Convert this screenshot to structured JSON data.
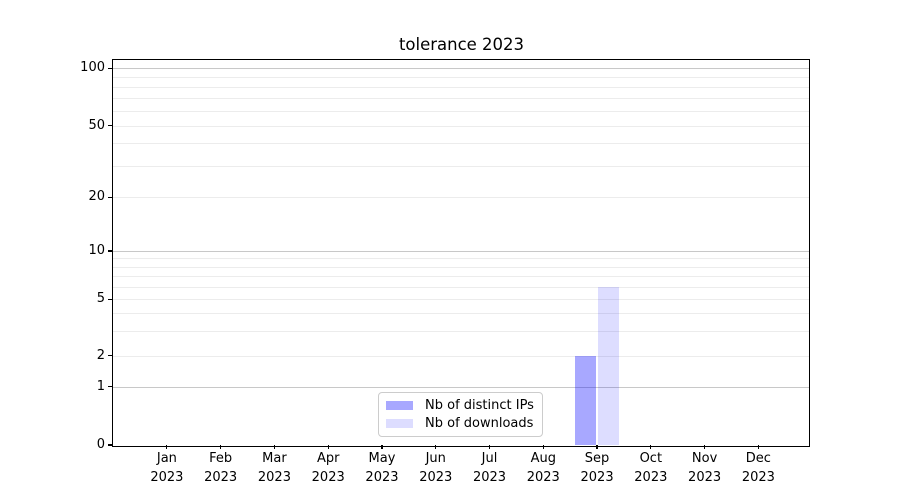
{
  "chart_data": {
    "type": "bar",
    "title": "tolerance 2023",
    "categories": [
      {
        "month": "Jan",
        "year": "2023"
      },
      {
        "month": "Feb",
        "year": "2023"
      },
      {
        "month": "Mar",
        "year": "2023"
      },
      {
        "month": "Apr",
        "year": "2023"
      },
      {
        "month": "May",
        "year": "2023"
      },
      {
        "month": "Jun",
        "year": "2023"
      },
      {
        "month": "Jul",
        "year": "2023"
      },
      {
        "month": "Aug",
        "year": "2023"
      },
      {
        "month": "Sep",
        "year": "2023"
      },
      {
        "month": "Oct",
        "year": "2023"
      },
      {
        "month": "Nov",
        "year": "2023"
      },
      {
        "month": "Dec",
        "year": "2023"
      }
    ],
    "series": [
      {
        "name": "Nb of distinct IPs",
        "color": "rgba(0,0,255,0.34)",
        "values": [
          0,
          0,
          0,
          0,
          0,
          0,
          0,
          0,
          2,
          0,
          0,
          0
        ]
      },
      {
        "name": "Nb of downloads",
        "color": "rgba(0,0,255,0.135)",
        "values": [
          0,
          0,
          0,
          0,
          0,
          0,
          0,
          0,
          6,
          0,
          0,
          0
        ]
      }
    ],
    "yaxis": {
      "scale": "symlog",
      "labeled_ticks": [
        0,
        1,
        2,
        5,
        10,
        20,
        50,
        100
      ],
      "major_gridlines": [
        1,
        10,
        100
      ],
      "minor_gridlines": [
        2,
        3,
        4,
        5,
        6,
        7,
        8,
        9,
        20,
        30,
        40,
        50,
        60,
        70,
        80,
        90
      ],
      "ylim": [
        0,
        112
      ]
    },
    "legend_location": "lower center",
    "grid": true,
    "colors": {
      "major_grid": "#c8c8c8",
      "minor_grid": "#ececec",
      "spine": "#000000",
      "text": "#000000"
    }
  }
}
